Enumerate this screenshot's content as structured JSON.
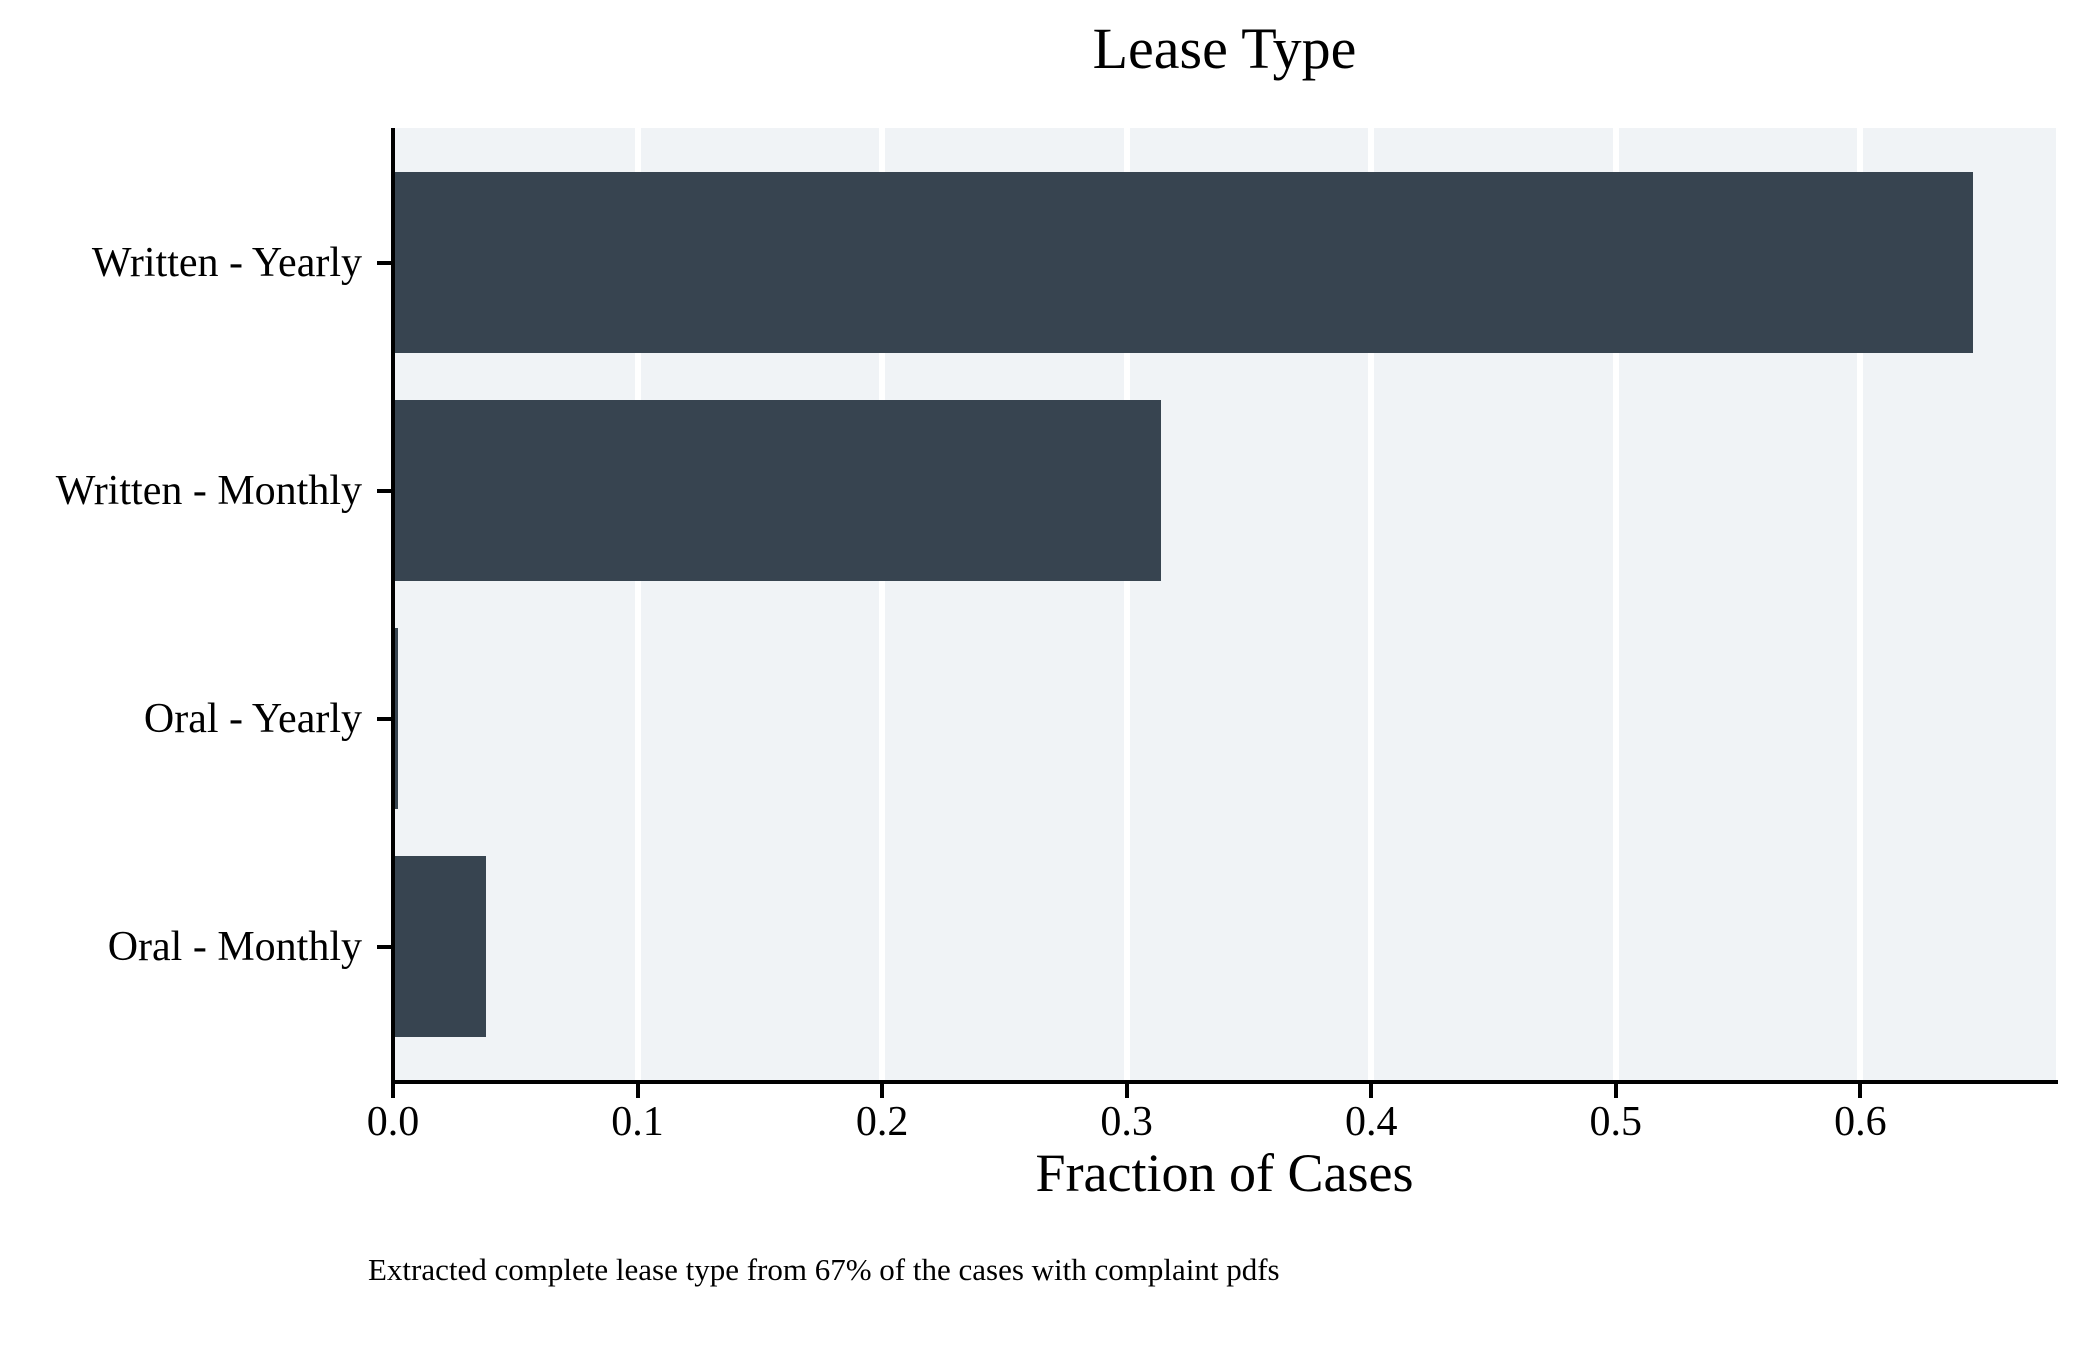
{
  "caption": "Extracted complete lease type from 67% of the cases with complaint pdfs",
  "colors": {
    "bar": "#374450",
    "plot_background": "#F0F3F6",
    "gridline": "#FFFFFF",
    "axis": "#000000",
    "figure_background": "#FFFFFF"
  },
  "chart_data": {
    "type": "bar",
    "orientation": "horizontal",
    "title": "Lease Type",
    "xlabel": "Fraction of Cases",
    "ylabel": "",
    "categories": [
      "Written - Yearly",
      "Written - Monthly",
      "Oral - Yearly",
      "Oral - Monthly"
    ],
    "values": [
      0.646,
      0.314,
      0.002,
      0.038
    ],
    "xlim": [
      0.0,
      0.68
    ],
    "xticks": [
      0.0,
      0.1,
      0.2,
      0.3,
      0.4,
      0.5,
      0.6
    ],
    "xtick_labels": [
      "0.0",
      "0.1",
      "0.2",
      "0.3",
      "0.4",
      "0.5",
      "0.6"
    ],
    "grid": "vertical white gridlines on",
    "legend": "none",
    "bar_color": "#374450",
    "plot_bg_color": "#F0F3F6",
    "grid_color": "#FFFFFF"
  }
}
